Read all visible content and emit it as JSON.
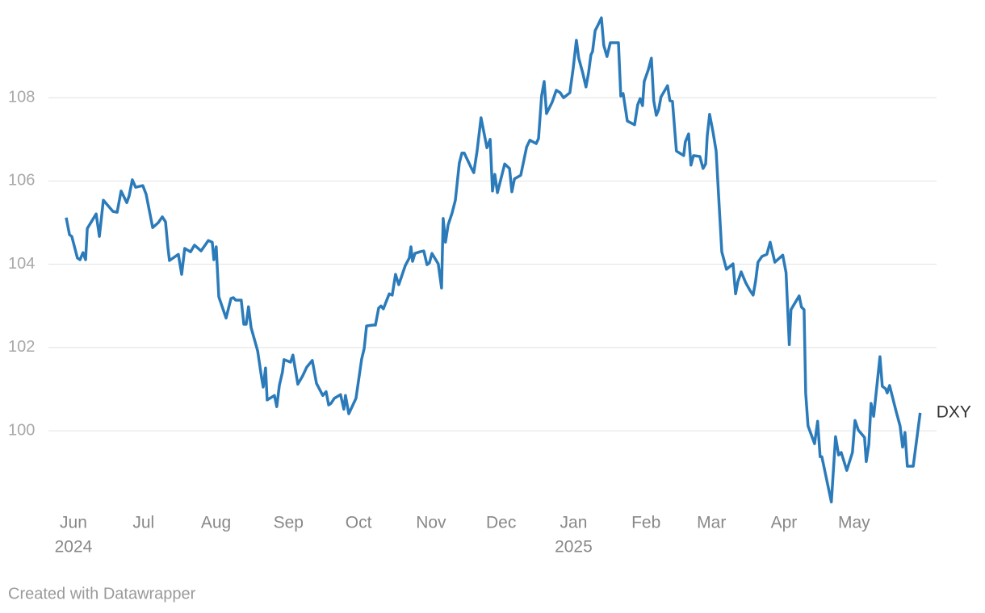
{
  "chart_data": {
    "type": "line",
    "credit": "Created with Datawrapper",
    "x": [
      -3.1,
      -1.7,
      -0.7,
      1.7,
      2.8,
      4.1,
      5.2,
      5.9,
      9.7,
      11.1,
      12.8,
      16.9,
      18.7,
      20.4,
      22.8,
      23.8,
      25.2,
      26.6,
      29.7,
      31.1,
      33.9,
      36.3,
      38.0,
      39.4,
      40.4,
      41.1,
      44.9,
      46.3,
      47.6,
      50.1,
      51.8,
      54.6,
      57.7,
      59.4,
      60.1,
      61.1,
      62.2,
      65.3,
      67.4,
      68.4,
      69.4,
      71.8,
      72.9,
      73.9,
      74.9,
      76.0,
      78.8,
      80.5,
      81.2,
      82.2,
      82.9,
      86.0,
      87.0,
      88.1,
      89.4,
      90.1,
      92.9,
      93.9,
      96.0,
      98.1,
      99.8,
      102.2,
      104.0,
      106.7,
      108.1,
      109.2,
      110.2,
      111.6,
      114.3,
      115.7,
      116.4,
      117.8,
      120.9,
      123.3,
      124.4,
      125.4,
      128.2,
      129.2,
      130.6,
      131.6,
      132.6,
      135.1,
      136.4,
      137.8,
      139.2,
      142.0,
      143.7,
      144.4,
      145.1,
      146.1,
      148.2,
      149.9,
      151.3,
      152.3,
      153.4,
      156.1,
      157.5,
      158.2,
      159.2,
      160.3,
      162.0,
      163.4,
      165.1,
      166.2,
      167.2,
      170.0,
      171.3,
      172.7,
      174.4,
      176.9,
      178.3,
      179.3,
      180.3,
      181.4,
      184.5,
      186.6,
      187.6,
      188.7,
      191.4,
      193.9,
      195.3,
      198.0,
      199.0,
      200.3,
      201.4,
      202.4,
      204.8,
      206.6,
      208.3,
      209.7,
      212.4,
      213.8,
      215.2,
      216.2,
      217.9,
      219.3,
      220.4,
      221.4,
      222.1,
      223.2,
      224.5,
      225.9,
      226.9,
      228.3,
      229.7,
      233.2,
      234.2,
      235.2,
      237.0,
      240.1,
      241.4,
      242.5,
      243.5,
      244.2,
      245.9,
      247.3,
      248.3,
      249.4,
      250.4,
      251.4,
      254.2,
      255.2,
      256.3,
      258.0,
      261.1,
      261.8,
      263.2,
      264.2,
      265.3,
      268.0,
      269.4,
      270.5,
      271.2,
      272.2,
      273.6,
      275.0,
      276.0,
      277.4,
      279.4,
      282.2,
      283.3,
      284.3,
      285.7,
      287.7,
      289.5,
      290.8,
      291.9,
      292.9,
      294.6,
      296.7,
      298.1,
      300.1,
      303.5,
      304.9,
      306.3,
      307.0,
      310.5,
      311.5,
      312.6,
      313.3,
      314.3,
      317.1,
      318.4,
      319.5,
      320.2,
      324.3,
      326.1,
      327.4,
      328.5,
      330.9,
      333.3,
      334.4,
      335.8,
      338.5,
      339.2,
      340.3,
      341.3,
      342.4,
      345.1,
      346.1,
      347.5,
      348.2,
      349.2,
      352.0,
      353.7,
      354.8,
      355.8,
      356.8,
      359.3,
      361.0,
      362.3
    ],
    "series": [
      {
        "name": "DXY",
        "color": "#2b7bba",
        "values": [
          105.12,
          104.71,
          104.67,
          104.15,
          104.11,
          104.28,
          104.11,
          104.86,
          105.21,
          104.67,
          105.54,
          105.27,
          105.25,
          105.76,
          105.48,
          105.64,
          106.03,
          105.85,
          105.89,
          105.68,
          104.88,
          105.0,
          105.14,
          105.02,
          104.42,
          104.09,
          104.24,
          103.76,
          104.38,
          104.3,
          104.46,
          104.32,
          104.57,
          104.53,
          104.11,
          104.42,
          103.22,
          102.71,
          103.18,
          103.2,
          103.14,
          103.14,
          102.56,
          102.56,
          102.98,
          102.48,
          101.92,
          101.28,
          101.05,
          101.51,
          100.74,
          100.85,
          100.58,
          101.09,
          101.41,
          101.71,
          101.65,
          101.82,
          101.12,
          101.32,
          101.53,
          101.69,
          101.14,
          100.85,
          100.94,
          100.62,
          100.66,
          100.78,
          100.87,
          100.52,
          100.85,
          100.41,
          100.78,
          101.72,
          101.98,
          102.52,
          102.54,
          102.54,
          102.95,
          103.0,
          102.93,
          103.29,
          103.26,
          103.76,
          103.51,
          103.97,
          104.15,
          104.42,
          104.07,
          104.26,
          104.3,
          104.32,
          103.99,
          104.03,
          104.26,
          104.01,
          103.43,
          105.1,
          104.53,
          104.94,
          105.23,
          105.54,
          106.43,
          106.67,
          106.67,
          106.34,
          106.2,
          106.72,
          107.52,
          106.8,
          107.0,
          105.76,
          106.16,
          105.72,
          106.41,
          106.3,
          105.74,
          106.05,
          106.14,
          106.82,
          106.98,
          106.9,
          107.02,
          108.04,
          108.39,
          107.62,
          107.89,
          108.18,
          108.12,
          108.0,
          108.12,
          108.7,
          109.38,
          108.95,
          108.6,
          108.26,
          108.6,
          109.03,
          109.11,
          109.61,
          109.75,
          109.92,
          109.26,
          108.99,
          109.32,
          109.32,
          108.04,
          108.1,
          107.44,
          107.35,
          107.83,
          107.98,
          107.81,
          108.39,
          108.66,
          108.95,
          107.93,
          107.58,
          107.71,
          108.02,
          108.29,
          107.93,
          107.91,
          106.72,
          106.61,
          106.94,
          107.13,
          106.38,
          106.61,
          106.59,
          106.3,
          106.41,
          107.09,
          107.6,
          107.19,
          106.72,
          105.7,
          104.3,
          103.88,
          104.01,
          103.29,
          103.58,
          103.82,
          103.55,
          103.37,
          103.26,
          103.6,
          104.05,
          104.19,
          104.24,
          104.53,
          104.05,
          104.22,
          103.8,
          102.07,
          102.91,
          103.24,
          102.97,
          102.91,
          100.91,
          100.12,
          99.69,
          100.23,
          99.38,
          99.38,
          98.29,
          99.86,
          99.42,
          99.48,
          99.05,
          99.48,
          100.25,
          100.02,
          99.84,
          99.26,
          99.67,
          100.66,
          100.35,
          101.78,
          101.07,
          101.01,
          100.91,
          101.09,
          100.47,
          100.12,
          99.61,
          99.96,
          99.15,
          99.15,
          99.88,
          100.43
        ]
      }
    ],
    "xlim": [
      -10.7,
      369.3
    ],
    "xticks": [
      {
        "value": 0,
        "label": "Jun"
      },
      {
        "value": 30,
        "label": "Jul"
      },
      {
        "value": 61,
        "label": "Aug"
      },
      {
        "value": 92,
        "label": "Sep"
      },
      {
        "value": 122,
        "label": "Oct"
      },
      {
        "value": 153,
        "label": "Nov"
      },
      {
        "value": 183,
        "label": "Dec"
      },
      {
        "value": 214,
        "label": "Jan"
      },
      {
        "value": 245,
        "label": "Feb"
      },
      {
        "value": 273,
        "label": "Mar"
      },
      {
        "value": 304,
        "label": "Apr"
      },
      {
        "value": 334,
        "label": "May"
      }
    ],
    "year_ticks": [
      {
        "value": 0,
        "label": "2024"
      },
      {
        "value": 214,
        "label": "2025"
      }
    ],
    "ylim": [
      98.24,
      109.96
    ],
    "yticks": [
      100,
      102,
      104,
      106,
      108
    ],
    "grid": true
  }
}
